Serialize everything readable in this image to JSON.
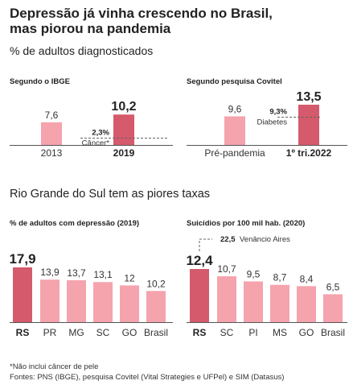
{
  "title_line1": "Depressão já vinha crescendo no Brasil,",
  "title_line2": "mas piorou na pandemia",
  "subtitle": "% de adultos diagnosticados",
  "section2_title": "Rio Grande do Sul tem as piores taxas",
  "colors": {
    "light": "#f5a3ad",
    "highlight": "#d45a6c",
    "baseline": "#555555",
    "dashed": "#666666"
  },
  "chart_data": [
    {
      "type": "bar",
      "title": "Segundo o IBGE",
      "categories": [
        "2013",
        "2019"
      ],
      "values": [
        7.6,
        10.2
      ],
      "value_labels": [
        "7,6",
        "10,2"
      ],
      "highlight": "2019",
      "ylim": [
        0,
        13.5
      ],
      "annotation": {
        "value": 2.3,
        "value_label": "2,3%",
        "label": "Câncer*"
      }
    },
    {
      "type": "bar",
      "title": "Segundo pesquisa Covitel",
      "categories": [
        "Pré-pandemia",
        "1º tri.2022"
      ],
      "values": [
        9.6,
        13.5
      ],
      "value_labels": [
        "9,6",
        "13,5"
      ],
      "highlight": "1º tri.2022",
      "ylim": [
        0,
        13.5
      ],
      "annotation": {
        "value": 9.3,
        "value_label": "9,3%",
        "label": "Diabetes"
      }
    },
    {
      "type": "bar",
      "title": "% de adultos com depressão (2019)",
      "categories": [
        "RS",
        "PR",
        "MG",
        "SC",
        "GO",
        "Brasil"
      ],
      "values": [
        17.9,
        13.9,
        13.7,
        13.1,
        12,
        10.2
      ],
      "value_labels": [
        "17,9",
        "13,9",
        "13,7",
        "13,1",
        "12",
        "10,2"
      ],
      "highlight": "RS",
      "ylim": [
        0,
        17.9
      ]
    },
    {
      "type": "bar",
      "title": "Suicídios por 100 mil hab. (2020)",
      "categories": [
        "RS",
        "SC",
        "PI",
        "MS",
        "GO",
        "Brasil"
      ],
      "values": [
        12.4,
        10.7,
        9.5,
        8.7,
        8.4,
        6.5
      ],
      "value_labels": [
        "12,4",
        "10,7",
        "9,5",
        "8,7",
        "8,4",
        "6,5"
      ],
      "highlight": "RS",
      "ylim": [
        0,
        12.4
      ],
      "annotation": {
        "value": 22.5,
        "value_label": "22,5",
        "label": "Venâncio Aires"
      }
    }
  ],
  "footnote": "*Não inclui câncer de pele",
  "sources": "Fontes: PNS (IBGE), pesquisa Covitel (Vital Strategies e UFPel) e SIM (Datasus)"
}
